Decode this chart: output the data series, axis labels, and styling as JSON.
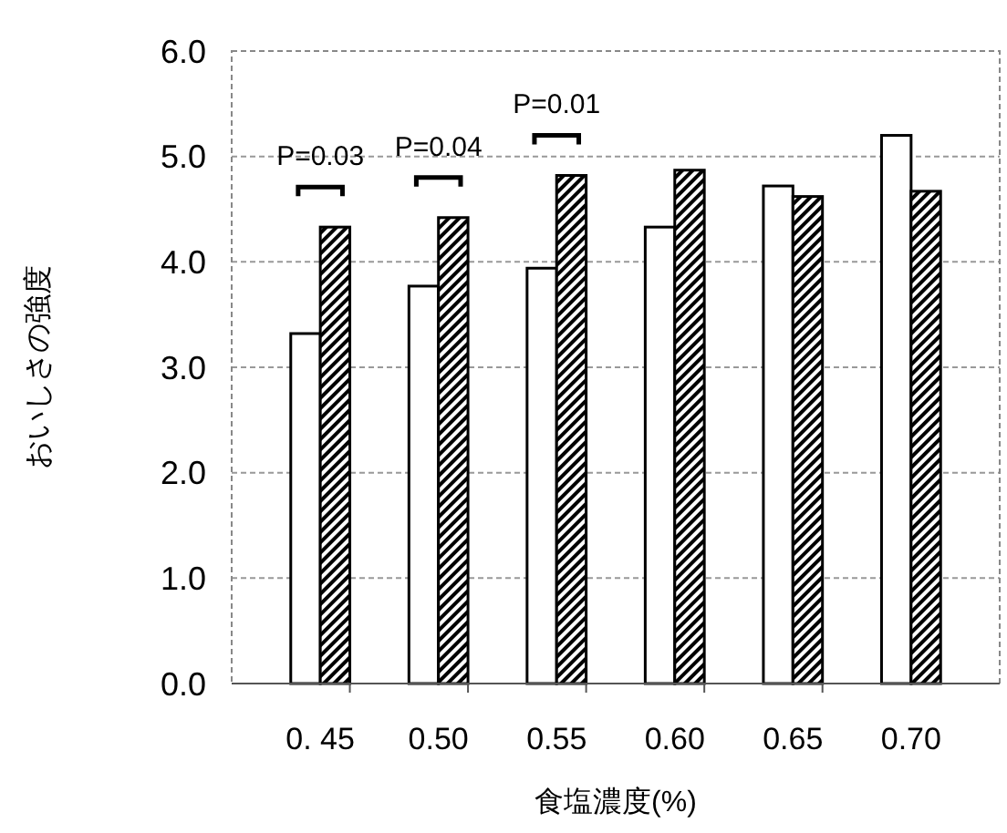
{
  "chart_data": {
    "type": "bar",
    "xlabel": "食塩濃度(%)",
    "ylabel": "おいしさの強度",
    "categories": [
      "0. 45",
      "0.50",
      "0.55",
      "0.60",
      "0.65",
      "0.70"
    ],
    "series": [
      {
        "color": "#ffffff",
        "values": [
          3.32,
          3.77,
          3.94,
          4.33,
          4.72,
          5.2
        ]
      },
      {
        "color": "#000000",
        "values": [
          4.33,
          4.42,
          4.82,
          4.87,
          4.62,
          4.67
        ]
      }
    ],
    "ylim": [
      0,
      6
    ],
    "yticks": [
      {
        "value": 0,
        "label": "0.0"
      },
      {
        "value": 1,
        "label": "1.0"
      },
      {
        "value": 2,
        "label": "2.0"
      },
      {
        "value": 3,
        "label": "3.0"
      },
      {
        "value": 4,
        "label": "4.0"
      },
      {
        "value": 5,
        "label": "5.0"
      },
      {
        "value": 6,
        "label": "6.0"
      }
    ],
    "grid": "y",
    "annotations": [
      "P=0.03",
      "P=0.04",
      "P=0.01"
    ]
  }
}
